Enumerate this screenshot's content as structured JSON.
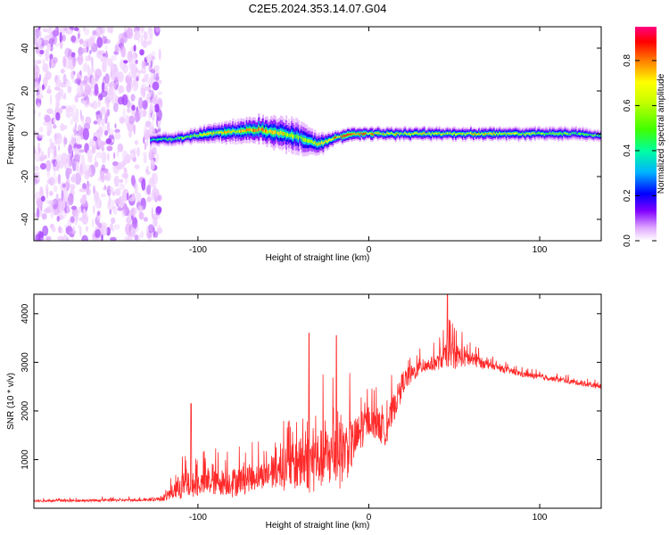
{
  "title": "C2E5.2024.353.14.07.G04",
  "chart_data": [
    {
      "type": "heatmap",
      "xlabel": "Height of straight line (km)",
      "ylabel": "Frequency (Hz)",
      "xlim": [
        -196,
        136
      ],
      "ylim": [
        -50,
        50
      ],
      "xticks": [
        -100,
        0,
        100
      ],
      "yticks": [
        -40,
        -20,
        0,
        20,
        40
      ],
      "colorbar": {
        "label": "Normalized spectral amplitude",
        "range": [
          0,
          0.95
        ],
        "ticks": [
          0.0,
          0.2,
          0.4,
          0.6,
          0.8
        ],
        "tick_labels": [
          "0.0",
          "0.2",
          "0.4",
          "0.6",
          "0.8"
        ],
        "colormap": [
          "#ffffff",
          "#e6b3ff",
          "#8000ff",
          "#0000ff",
          "#00c8ff",
          "#00ff80",
          "#80ff00",
          "#ffff00",
          "#ff8000",
          "#ff0000",
          "#ff0080"
        ]
      },
      "ridge": {
        "description_points_x": [
          -128,
          -110,
          -95,
          -80,
          -65,
          -50,
          -40,
          -30,
          -20,
          -10,
          0,
          20,
          40,
          60,
          80,
          100,
          120,
          136
        ],
        "center_hz": [
          -3,
          -2,
          0,
          1,
          2,
          0,
          -2,
          -5,
          -2,
          0,
          0,
          0,
          0,
          0,
          0,
          0,
          0,
          -1
        ],
        "width_hz": [
          3,
          3,
          4,
          5,
          6,
          8,
          7,
          5,
          3,
          3,
          3,
          3,
          3,
          3,
          3,
          3,
          3,
          3
        ],
        "peak_amplitude": [
          0.5,
          0.6,
          0.7,
          0.75,
          0.8,
          0.7,
          0.6,
          0.7,
          0.85,
          0.9,
          0.8,
          0.7,
          0.7,
          0.75,
          0.7,
          0.65,
          0.6,
          0.55
        ]
      },
      "noise_region_x": [
        -196,
        -122
      ],
      "grid": false
    },
    {
      "type": "line",
      "xlabel": "Height of straight line (km)",
      "ylabel": "SNR (10 * v/v)",
      "xlim": [
        -196,
        136
      ],
      "ylim": [
        0,
        4400
      ],
      "xticks": [
        -100,
        0,
        100
      ],
      "yticks": [
        1000,
        2000,
        3000,
        4000
      ],
      "color": "#ff2020",
      "envelope": {
        "x": [
          -196,
          -160,
          -130,
          -120,
          -110,
          -100,
          -80,
          -60,
          -50,
          -40,
          -30,
          -20,
          -10,
          0,
          10,
          20,
          30,
          40,
          48,
          55,
          70,
          90,
          110,
          136
        ],
        "y_base": [
          150,
          160,
          170,
          200,
          450,
          500,
          550,
          700,
          800,
          900,
          1000,
          1100,
          1300,
          1800,
          1600,
          2600,
          2900,
          3000,
          3200,
          3100,
          2950,
          2750,
          2650,
          2500
        ],
        "y_spread": [
          50,
          60,
          60,
          120,
          700,
          600,
          700,
          700,
          900,
          1400,
          1500,
          1700,
          1300,
          700,
          800,
          600,
          350,
          400,
          700,
          500,
          180,
          140,
          120,
          120
        ],
        "notable_peaks": [
          {
            "x": -104,
            "y": 2150
          },
          {
            "x": -35,
            "y": 3600
          },
          {
            "x": -19,
            "y": 3550
          },
          {
            "x": 46,
            "y": 4400
          }
        ]
      },
      "grid": false
    }
  ]
}
